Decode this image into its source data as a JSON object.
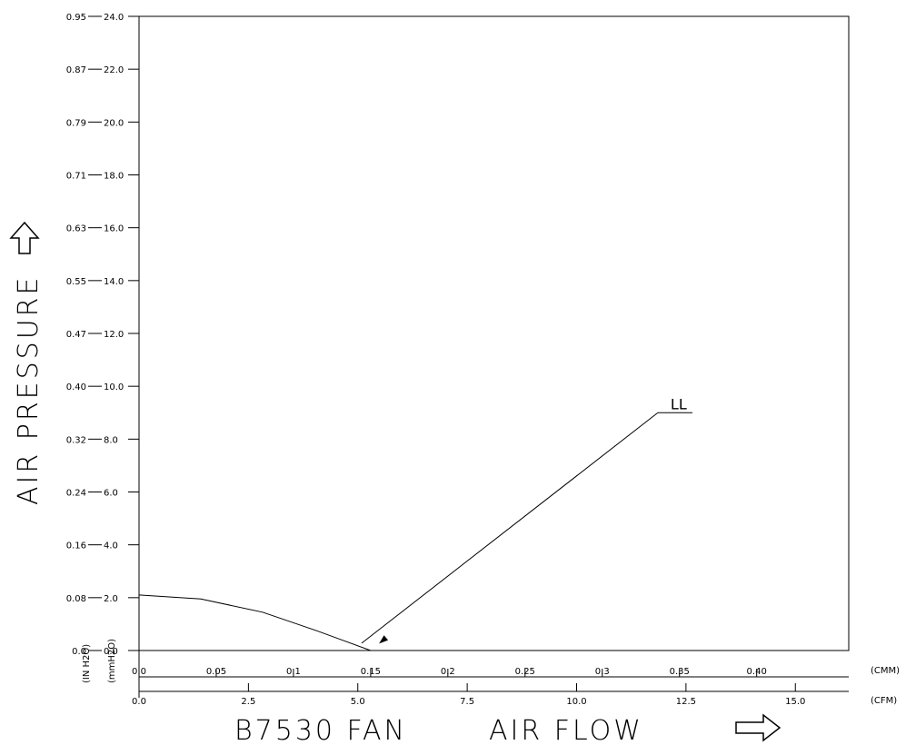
{
  "chart_data": {
    "type": "line",
    "title": "",
    "xlabel_prefix": "B7530 FAN",
    "xlabel": "AIR FLOW",
    "ylabel": "AIR PRESSURE",
    "x_units": {
      "primary": "(CMM)",
      "secondary": "(CFM)"
    },
    "y_units": {
      "primary": "(mmH2O)",
      "secondary": "(IN H2O)"
    },
    "xlim_cmm": [
      0,
      0.46
    ],
    "ylim_mmh2o": [
      0,
      24.0
    ],
    "x_ticks_cmm": [
      "0.0",
      "0.05",
      "0.1",
      "0.15",
      "0.2",
      "0.25",
      "0.3",
      "0.35",
      "0.40"
    ],
    "x_ticks_cfm": [
      "0.0",
      "2.5",
      "5.0",
      "7.5",
      "10.0",
      "12.5",
      "15.0"
    ],
    "y_ticks_mmh2o": [
      "0.0",
      "2.0",
      "4.0",
      "6.0",
      "8.0",
      "10.0",
      "12.0",
      "14.0",
      "16.0",
      "18.0",
      "20.0",
      "22.0",
      "24.0"
    ],
    "y_ticks_inh2o": [
      "0.0",
      "0.08",
      "0.16",
      "0.24",
      "0.32",
      "0.40",
      "0.47",
      "0.55",
      "0.63",
      "0.71",
      "0.79",
      "0.87",
      "0.95"
    ],
    "grid": false,
    "series": [
      {
        "name": "LL",
        "x": [
          0.0,
          0.04,
          0.08,
          0.115,
          0.15
        ],
        "y": [
          2.1,
          1.95,
          1.45,
          0.75,
          0.0
        ]
      }
    ],
    "annotations": [
      {
        "text": "LL",
        "points_to_x": 0.15,
        "points_to_y": 0.0,
        "label_x": 0.336,
        "label_y": 9.0
      }
    ]
  }
}
